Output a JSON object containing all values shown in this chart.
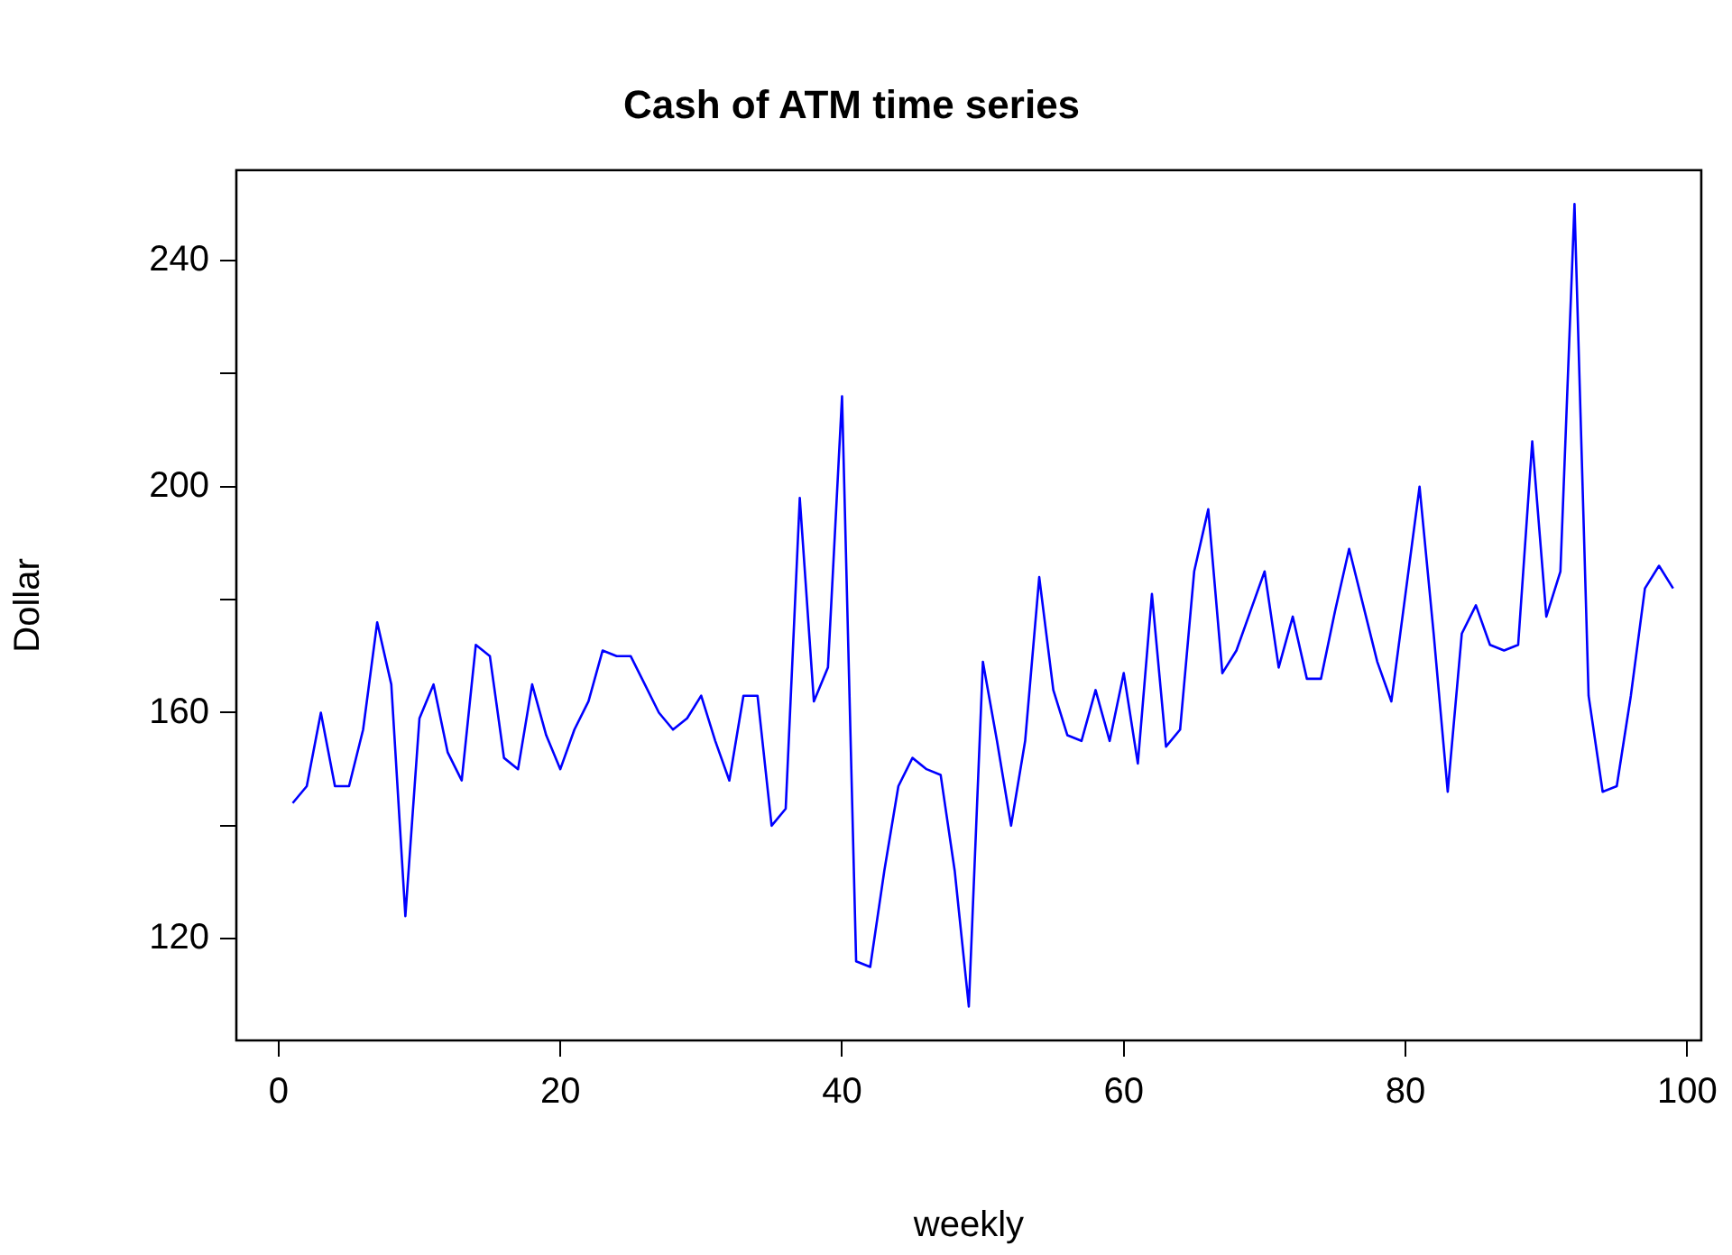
{
  "chart_data": {
    "type": "line",
    "title": "Cash of ATM time series",
    "xlabel": "weekly",
    "ylabel": "Dollar",
    "x": [
      1,
      2,
      3,
      4,
      5,
      6,
      7,
      8,
      9,
      10,
      11,
      12,
      13,
      14,
      15,
      16,
      17,
      18,
      19,
      20,
      21,
      22,
      23,
      24,
      25,
      26,
      27,
      28,
      29,
      30,
      31,
      32,
      33,
      34,
      35,
      36,
      37,
      38,
      39,
      40,
      41,
      42,
      43,
      44,
      45,
      46,
      47,
      48,
      49,
      50,
      51,
      52,
      53,
      54,
      55,
      56,
      57,
      58,
      59,
      60,
      61,
      62,
      63,
      64,
      65,
      66,
      67,
      68,
      69,
      70,
      71,
      72,
      73,
      74,
      75,
      76,
      77,
      78,
      79,
      80,
      81,
      82,
      83,
      84,
      85,
      86,
      87,
      88,
      89,
      90,
      91,
      92,
      93,
      94,
      95,
      96,
      97,
      98,
      99
    ],
    "series": [
      {
        "color": "#0000ff",
        "values": [
          144,
          147,
          160,
          147,
          147,
          157,
          176,
          165,
          124,
          159,
          165,
          153,
          148,
          172,
          170,
          152,
          150,
          165,
          156,
          150,
          157,
          162,
          171,
          170,
          170,
          165,
          160,
          157,
          159,
          163,
          155,
          148,
          163,
          163,
          140,
          143,
          198,
          162,
          168,
          216,
          116,
          115,
          132,
          147,
          152,
          150,
          149,
          132,
          108,
          169,
          155,
          140,
          155,
          184,
          164,
          156,
          155,
          164,
          155,
          167,
          151,
          181,
          154,
          157,
          185,
          196,
          167,
          171,
          178,
          185,
          168,
          177,
          166,
          166,
          178,
          189,
          179,
          169,
          162,
          181,
          200,
          174,
          146,
          174,
          179,
          172,
          171,
          172,
          208,
          177,
          185,
          250,
          163,
          146,
          147,
          163,
          182,
          186,
          182
        ]
      }
    ],
    "xlim": [
      -3,
      101
    ],
    "xticks": [
      0,
      20,
      40,
      60,
      80,
      100
    ],
    "ylim": [
      102,
      256
    ],
    "yticks": [
      {
        "value": 120,
        "label": "120"
      },
      {
        "value": 140,
        "label": null
      },
      {
        "value": 160,
        "label": "160"
      },
      {
        "value": 180,
        "label": null
      },
      {
        "value": 200,
        "label": "200"
      },
      {
        "value": 220,
        "label": null
      },
      {
        "value": 240,
        "label": "240"
      }
    ],
    "grid": false,
    "legend": false,
    "marker": "none",
    "line_style": "solid"
  }
}
